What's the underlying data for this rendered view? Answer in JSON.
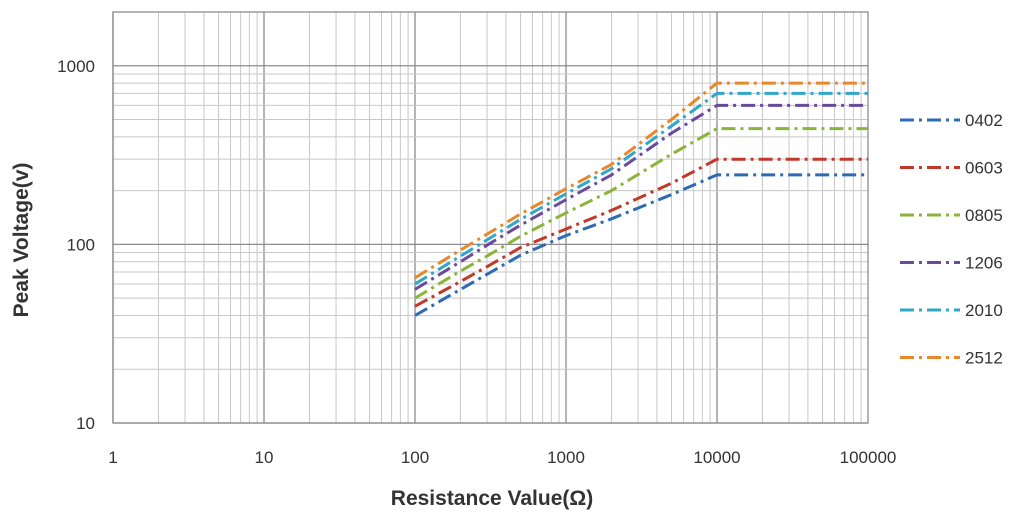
{
  "chart_data": {
    "type": "line",
    "xscale": "log",
    "yscale": "log",
    "xlim": [
      1,
      100000
    ],
    "ylim": [
      10,
      2000
    ],
    "xlabel": "Resistance Value(Ω)",
    "ylabel": "Peak Voltage(v)",
    "x_tick_labels": [
      "1",
      "10",
      "100",
      "1000",
      "10000",
      "100000"
    ],
    "y_tick_labels": [
      "10",
      "100",
      "1000"
    ],
    "grid": true,
    "legend_position": "right",
    "line_style": "dash-dot",
    "x": [
      100,
      200,
      300,
      500,
      1000,
      2000,
      5000,
      10000,
      100000
    ],
    "series": [
      {
        "name": "0402",
        "color": "#2e6bb5",
        "values": [
          40,
          56,
          68,
          87,
          112,
          139,
          190,
          245,
          245
        ]
      },
      {
        "name": "0603",
        "color": "#c0392b",
        "values": [
          45,
          62,
          75,
          96,
          122,
          155,
          220,
          300,
          300
        ]
      },
      {
        "name": "0805",
        "color": "#8ab53a",
        "values": [
          50,
          71,
          86,
          111,
          150,
          200,
          320,
          445,
          445
        ]
      },
      {
        "name": "1206",
        "color": "#6b4a9e",
        "values": [
          56,
          80,
          99,
          128,
          178,
          245,
          420,
          600,
          600
        ]
      },
      {
        "name": "2010",
        "color": "#2fa7c9",
        "values": [
          60,
          86,
          106,
          138,
          192,
          265,
          460,
          700,
          700
        ]
      },
      {
        "name": "2512",
        "color": "#e8872b",
        "values": [
          65,
          93,
          114,
          148,
          205,
          280,
          500,
          800,
          800
        ]
      }
    ]
  }
}
